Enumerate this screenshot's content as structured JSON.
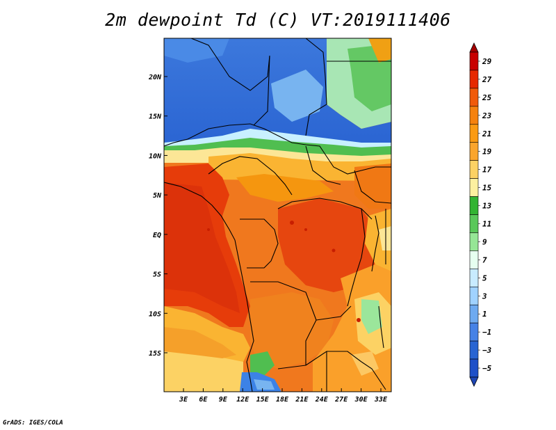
{
  "title": "2m dewpoint Td (C) VT:2019111406",
  "footer": "GrADS: IGES/COLA",
  "map": {
    "lat_labels": [
      {
        "label": "20N",
        "lat": 20
      },
      {
        "label": "15N",
        "lat": 15
      },
      {
        "label": "10N",
        "lat": 10
      },
      {
        "label": "5N",
        "lat": 5
      },
      {
        "label": "EQ",
        "lat": 0
      },
      {
        "label": "5S",
        "lat": -5
      },
      {
        "label": "10S",
        "lat": -10
      },
      {
        "label": "15S",
        "lat": -15
      }
    ],
    "lon_labels": [
      {
        "label": "3E",
        "lon": 3
      },
      {
        "label": "6E",
        "lon": 6
      },
      {
        "label": "9E",
        "lon": 9
      },
      {
        "label": "12E",
        "lon": 12
      },
      {
        "label": "15E",
        "lon": 15
      },
      {
        "label": "18E",
        "lon": 18
      },
      {
        "label": "21E",
        "lon": 21
      },
      {
        "label": "24E",
        "lon": 24
      },
      {
        "label": "27E",
        "lon": 27
      },
      {
        "label": "30E",
        "lon": 30
      },
      {
        "label": "33E",
        "lon": 33
      }
    ]
  },
  "colorbar": {
    "labels": [
      "29",
      "27",
      "25",
      "23",
      "21",
      "19",
      "17",
      "15",
      "13",
      "11",
      "9",
      "7",
      "5",
      "3",
      "1",
      "−1",
      "−3",
      "−5"
    ],
    "colors": [
      "#a50000",
      "#c80000",
      "#e62800",
      "#f05a0a",
      "#f5820f",
      "#fa9b14",
      "#faa52d",
      "#fcd264",
      "#fcf0a0",
      "#32b432",
      "#5ac85a",
      "#96e696",
      "#e6fff0",
      "#c8ebff",
      "#a0d2ff",
      "#6eaaf0",
      "#4682e6",
      "#2864d2",
      "#1e50c8",
      "#1e46b4"
    ]
  },
  "chart_data": {
    "type": "heatmap",
    "title": "2m dewpoint Td (C) VT:2019111406",
    "variable": "2m dewpoint temperature",
    "units": "C",
    "valid_time": "2019111406",
    "colorbar_ticks": [
      29,
      27,
      25,
      23,
      21,
      19,
      17,
      15,
      13,
      11,
      9,
      7,
      5,
      3,
      1,
      -1,
      -3,
      -5
    ],
    "x_ticks": [
      "3E",
      "6E",
      "9E",
      "12E",
      "15E",
      "18E",
      "21E",
      "24E",
      "27E",
      "30E",
      "33E"
    ],
    "y_ticks": [
      "20N",
      "15N",
      "10N",
      "5N",
      "EQ",
      "5S",
      "10S",
      "15S"
    ]
  }
}
